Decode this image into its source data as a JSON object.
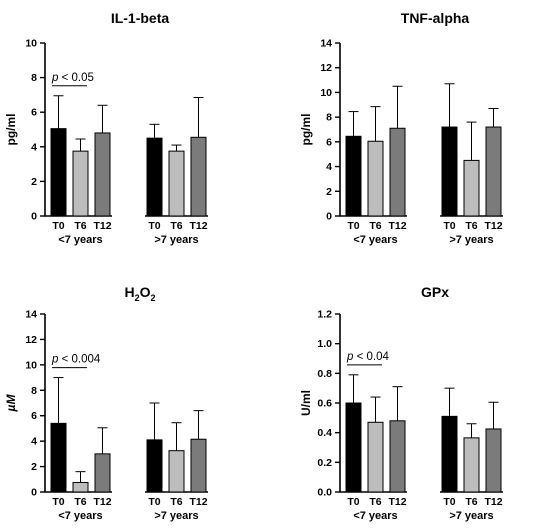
{
  "colors": {
    "T0": "#000000",
    "T6": "#bdbdbd",
    "T12": "#7b7b7b",
    "axis": "#000000",
    "error_bar": "#000000"
  },
  "chart_data": [
    {
      "type": "bar",
      "title": "IL-1-beta",
      "ylabel": "pg/ml",
      "ylim": [
        0,
        10
      ],
      "yticks": [
        0,
        2,
        4,
        6,
        8,
        10
      ],
      "ytick_labels": [
        "0",
        "2",
        "4",
        "6",
        "8",
        "10"
      ],
      "grid": false,
      "groups": [
        {
          "name": "<7 years",
          "categories": [
            "T0",
            "T6",
            "T12"
          ],
          "values": [
            5.05,
            3.75,
            4.8
          ],
          "errors": [
            1.9,
            0.7,
            1.6
          ]
        },
        {
          "name": ">7 years",
          "categories": [
            "T0",
            "T6",
            "T12"
          ],
          "values": [
            4.5,
            3.75,
            4.55
          ],
          "errors": [
            0.8,
            0.35,
            2.3
          ]
        }
      ],
      "annotation": {
        "p_label": "p",
        "text": " < 0.05",
        "group": 0,
        "from": 0,
        "to": 1
      }
    },
    {
      "type": "bar",
      "title": "TNF-alpha",
      "ylabel": "pg/ml",
      "ylim": [
        0,
        14
      ],
      "yticks": [
        0,
        2,
        4,
        6,
        8,
        10,
        12,
        14
      ],
      "ytick_labels": [
        "0",
        "2",
        "4",
        "6",
        "8",
        "10",
        "12",
        "14"
      ],
      "grid": false,
      "groups": [
        {
          "name": "<7 years",
          "categories": [
            "T0",
            "T6",
            "T12"
          ],
          "values": [
            6.45,
            6.05,
            7.1
          ],
          "errors": [
            2.0,
            2.8,
            3.4
          ]
        },
        {
          "name": ">7 years",
          "categories": [
            "T0",
            "T6",
            "T12"
          ],
          "values": [
            7.2,
            4.5,
            7.2
          ],
          "errors": [
            3.5,
            3.1,
            1.5
          ]
        }
      ],
      "annotation": null
    },
    {
      "type": "bar",
      "title": "H2O2",
      "title_main": "H",
      "title_sub1": "2",
      "title_mid": "O",
      "title_sub2": "2",
      "ylabel": "µM",
      "ylim": [
        0,
        14
      ],
      "yticks": [
        0,
        2,
        4,
        6,
        8,
        10,
        12,
        14
      ],
      "ytick_labels": [
        "0",
        "2",
        "4",
        "6",
        "8",
        "10",
        "12",
        "14"
      ],
      "grid": false,
      "groups": [
        {
          "name": "<7 years",
          "categories": [
            "T0",
            "T6",
            "T12"
          ],
          "values": [
            5.4,
            0.75,
            3.0
          ],
          "errors": [
            3.6,
            0.85,
            2.05
          ]
        },
        {
          "name": ">7 years",
          "categories": [
            "T0",
            "T6",
            "T12"
          ],
          "values": [
            4.1,
            3.25,
            4.15
          ],
          "errors": [
            2.9,
            2.2,
            2.25
          ]
        }
      ],
      "annotation": {
        "p_label": "p",
        "text": " < 0.004",
        "group": 0,
        "from": 0,
        "to": 1
      }
    },
    {
      "type": "bar",
      "title": "GPx",
      "ylabel": "U/ml",
      "ylim": [
        0,
        1.2
      ],
      "yticks": [
        0,
        0.2,
        0.4,
        0.6,
        0.8,
        1.0,
        1.2
      ],
      "ytick_labels": [
        "0.0",
        "0.2",
        "0.4",
        "0.6",
        "0.8",
        "1.0",
        "1.2"
      ],
      "grid": false,
      "groups": [
        {
          "name": "<7 years",
          "categories": [
            "T0",
            "T6",
            "T12"
          ],
          "values": [
            0.6,
            0.47,
            0.48
          ],
          "errors": [
            0.19,
            0.17,
            0.23
          ]
        },
        {
          "name": ">7 years",
          "categories": [
            "T0",
            "T6",
            "T12"
          ],
          "values": [
            0.51,
            0.365,
            0.425
          ],
          "errors": [
            0.19,
            0.095,
            0.18
          ]
        }
      ],
      "annotation": {
        "p_label": "p",
        "text": " < 0.04",
        "group": 0,
        "from": 0,
        "to": 1
      }
    }
  ]
}
